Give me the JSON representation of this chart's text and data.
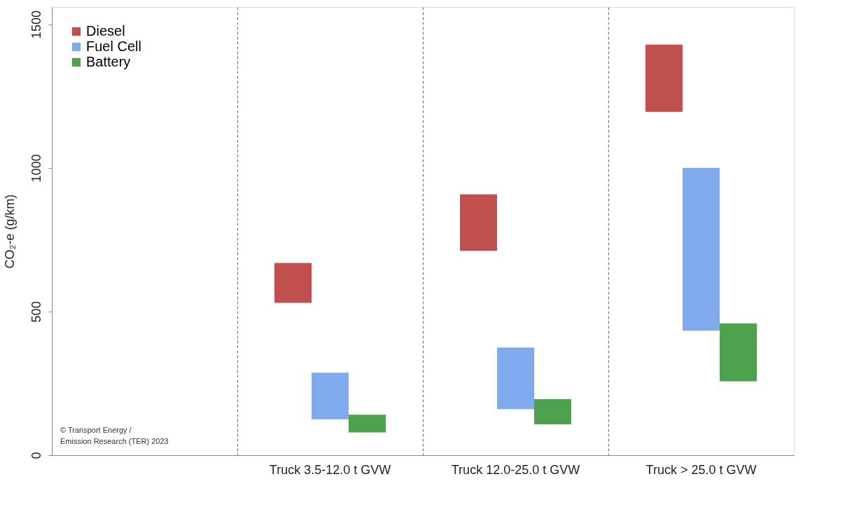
{
  "chart_data": {
    "type": "bar",
    "ylabel": "CO₂-e (g/km)",
    "categories": [
      null,
      "Truck 3.5-12.0 t GVW",
      "Truck 12.0-25.0 t GVW",
      "Truck > 25.0 t GVW"
    ],
    "series": [
      {
        "name": "Diesel",
        "color": "#c0504d",
        "base": [
          null,
          530,
          711,
          1195
        ],
        "values": [
          null,
          139,
          197,
          234
        ]
      },
      {
        "name": "Fuel Cell",
        "color": "#7faaee",
        "base": [
          null,
          125,
          160,
          433
        ],
        "values": [
          null,
          162,
          215,
          567
        ]
      },
      {
        "name": "Battery",
        "color": "#4ea24e",
        "base": [
          null,
          79,
          107,
          257
        ],
        "values": [
          null,
          62,
          88,
          202
        ]
      }
    ],
    "ylim": [
      0,
      1560
    ],
    "yticks": [
      0,
      500,
      1000,
      1500
    ],
    "grid": "x",
    "legend": "top left",
    "annotations": [
      "© Transport Energy / Emission Research (TER) 2023"
    ]
  }
}
